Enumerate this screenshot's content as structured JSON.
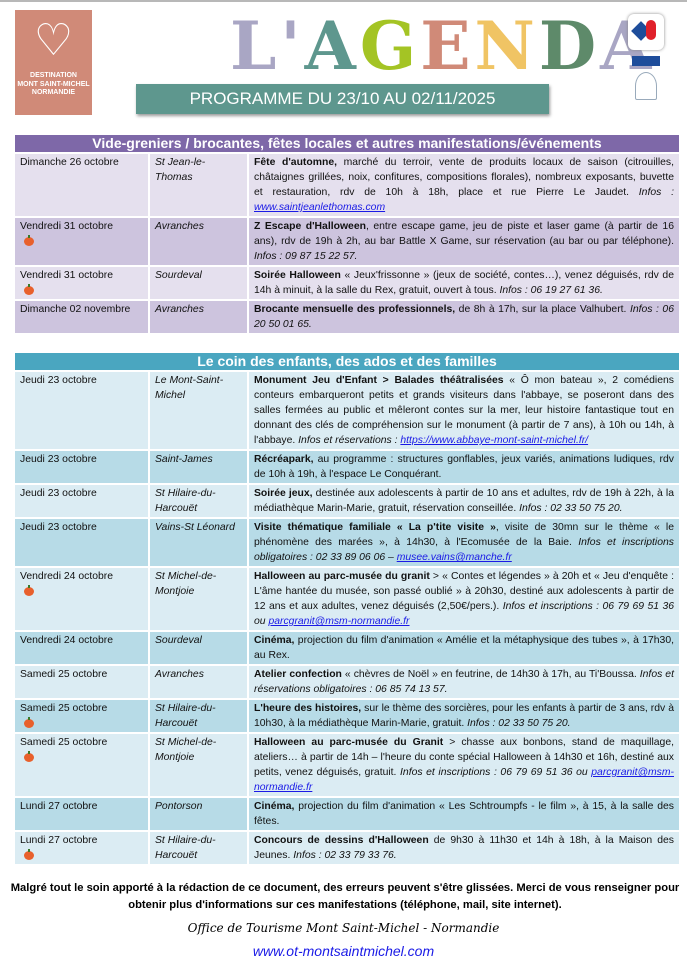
{
  "header": {
    "logo_text": [
      "DESTINATION",
      "MONT SAINT-MICHEL",
      "NORMANDIE"
    ],
    "title": "L'AGENDA",
    "title_colors": [
      "#a9a6c4",
      "#a9a6c4",
      "#5e978e",
      "#a4c424",
      "#d08a78",
      "#f0c464",
      "#5e8a6a",
      "#a9a6c4"
    ],
    "programme": "PROGRAMME DU 23/10 AU 02/11/2025"
  },
  "sections": [
    {
      "title": "Vide-greniers / brocantes, fêtes locales et autres manifestations/événements",
      "color": "#7e68a8",
      "row_colors": [
        "#e5e0ee",
        "#cdc4de"
      ],
      "rows": [
        {
          "date": "Dimanche 26 octobre",
          "pumpkin": false,
          "city": "St Jean-le-Thomas",
          "bold": "Fête d'automne,",
          "text": " marché du terroir, vente de produits locaux de saison (citrouilles, châtaignes grillées, noix, confitures, compositions florales), nombreux exposants, buvette et restauration, rdv de 10h à 18h, place et rue Pierre Le Jaudet. ",
          "infos": "Infos : ",
          "link": "www.saintjeanlethomas.com"
        },
        {
          "date": "Vendredi 31 octobre",
          "pumpkin": true,
          "city": "Avranches",
          "bold": "Z Escape d'Halloween",
          "text": ", entre escape game, jeu de piste et laser game (à partir de 16 ans), rdv de 19h à 2h, au bar Battle X Game, sur réservation (au bar ou par téléphone). ",
          "infos": "Infos : 09 87 15 22 57.",
          "link": ""
        },
        {
          "date": "Vendredi 31 octobre",
          "pumpkin": true,
          "city": "Sourdeval",
          "bold": "Soirée Halloween",
          "text": " « Jeux'frissonne » (jeux de société, contes…), venez déguisés, rdv de 14h à minuit, à la salle du Rex, gratuit, ouvert à tous. ",
          "infos": "Infos : 06 19 27 61 36.",
          "link": ""
        },
        {
          "date": "Dimanche 02 novembre",
          "pumpkin": false,
          "city": "Avranches",
          "bold": "Brocante mensuelle des professionnels,",
          "text": " de 8h à 17h, sur la place Valhubert. ",
          "infos": "Infos : 06 20 50 01 65.",
          "link": ""
        }
      ]
    },
    {
      "title": "Le coin des enfants, des ados et des familles",
      "color": "#4aa6c0",
      "row_colors": [
        "#dbecf3",
        "#b7dbe7"
      ],
      "rows": [
        {
          "date": "Jeudi 23 octobre",
          "pumpkin": false,
          "city": "Le Mont-Saint-Michel",
          "bold": "Monument Jeu d'Enfant > Balades théâtralisées",
          "text": " « Ô mon bateau », 2 comédiens conteurs embarqueront petits et grands visiteurs dans l'abbaye, se poseront dans des salles fermées au public et mêleront contes sur la mer, leur histoire fantastique tout en donnant des clés de compréhension sur le monument (à partir de 7 ans), à 10h ou 14h, à l'abbaye. ",
          "infos": "Infos et réservations :  ",
          "link": "https://www.abbaye-mont-saint-michel.fr/"
        },
        {
          "date": "Jeudi 23 octobre",
          "pumpkin": false,
          "city": "Saint-James",
          "bold": "Récréapark,",
          "text": " au programme : structures gonflables, jeux variés, animations ludiques, rdv de 10h à 19h, à l'espace Le Conquérant.",
          "infos": "",
          "link": ""
        },
        {
          "date": "Jeudi 23 octobre",
          "pumpkin": false,
          "city": "St Hilaire-du-Harcouët",
          "bold": "Soirée jeux,",
          "text": " destinée aux adolescents à partir de 10 ans et adultes, rdv de 19h à 22h, à la médiathèque Marin-Marie, gratuit, réservation conseillée. ",
          "infos": "Infos : 02 33 50 75 20.",
          "link": ""
        },
        {
          "date": "Jeudi 23 octobre",
          "pumpkin": false,
          "city": "Vains-St Léonard",
          "bold": "Visite thématique familiale « La p'tite visite »",
          "text": ", visite de 30mn sur le thème « le phénomène des marées », à 14h30, à l'Ecomusée de la Baie. ",
          "infos": "Infos et inscriptions obligatoires : 02 33 89 06 06 – ",
          "link": "musee.vains@manche.fr"
        },
        {
          "date": "Vendredi 24 octobre",
          "pumpkin": true,
          "city": "St Michel-de-Montjoie",
          "bold": "Halloween au parc-musée du granit",
          "text": " > « Contes et légendes » à 20h et « Jeu d'enquête : L'âme hantée du musée, son passé oublié » à 20h30, destiné aux adolescents à partir de 12 ans et aux adultes, venez déguisés (2,50€/pers.). ",
          "infos": "Infos et inscriptions : 06 79 69 51 36 ou ",
          "link": "parcgranit@msm-normandie.fr"
        },
        {
          "date": "Vendredi 24 octobre",
          "pumpkin": false,
          "city": "Sourdeval",
          "bold": "Cinéma,",
          "text": " projection du film d'animation « Amélie et la métaphysique des tubes », à 17h30, au Rex.",
          "infos": "",
          "link": ""
        },
        {
          "date": "Samedi 25 octobre",
          "pumpkin": false,
          "city": "Avranches",
          "bold": "Atelier confection",
          "text": " « chèvres de Noël » en feutrine, de 14h30 à 17h, au Ti'Boussa. ",
          "infos": "Infos et réservations obligatoires : 06 85 74 13 57.",
          "link": ""
        },
        {
          "date": "Samedi 25 octobre",
          "pumpkin": true,
          "city": "St Hilaire-du-Harcouët",
          "bold": "L'heure des histoires,",
          "text": " sur le thème des sorcières, pour les enfants à partir de 3 ans, rdv à 10h30, à la médiathèque Marin-Marie, gratuit. ",
          "infos": "Infos : 02 33 50 75 20.",
          "link": ""
        },
        {
          "date": "Samedi 25 octobre",
          "pumpkin": true,
          "city": "St Michel-de-Montjoie",
          "bold": "Halloween au parc-musée du Granit",
          "text": " > chasse aux bonbons, stand de maquillage, ateliers… à partir de 14h – l'heure du conte spécial Halloween à 14h30 et 16h, destiné aux petits, venez déguisés, gratuit. ",
          "infos": "Infos et inscriptions : 06 79 69 51 36 ou ",
          "link": "parcgranit@msm-normandie.fr"
        },
        {
          "date": "Lundi 27 octobre",
          "pumpkin": false,
          "city": "Pontorson",
          "bold": "Cinéma,",
          "text": " projection du film d'animation « Les Schtroumpfs - le film », à 15, à la salle des fêtes.",
          "infos": "",
          "link": ""
        },
        {
          "date": "Lundi 27 octobre",
          "pumpkin": true,
          "city": "St Hilaire-du-Harcouët",
          "bold": "Concours de dessins d'Halloween",
          "text": " de 9h30 à 11h30 et 14h à 18h, à la Maison des Jeunes. ",
          "infos": "Infos : 02 33 79 33 76.",
          "link": ""
        }
      ]
    }
  ],
  "footer": {
    "disclaimer": "Malgré tout le soin apporté à la rédaction de ce document, des erreurs peuvent s'être glissées. Merci de vous renseigner pour obtenir plus d'informations sur ces manifestations (téléphone, mail, site internet).",
    "signature": "Office de Tourisme Mont Saint-Michel - Normandie",
    "website": "www.ot-montsaintmichel.com"
  }
}
